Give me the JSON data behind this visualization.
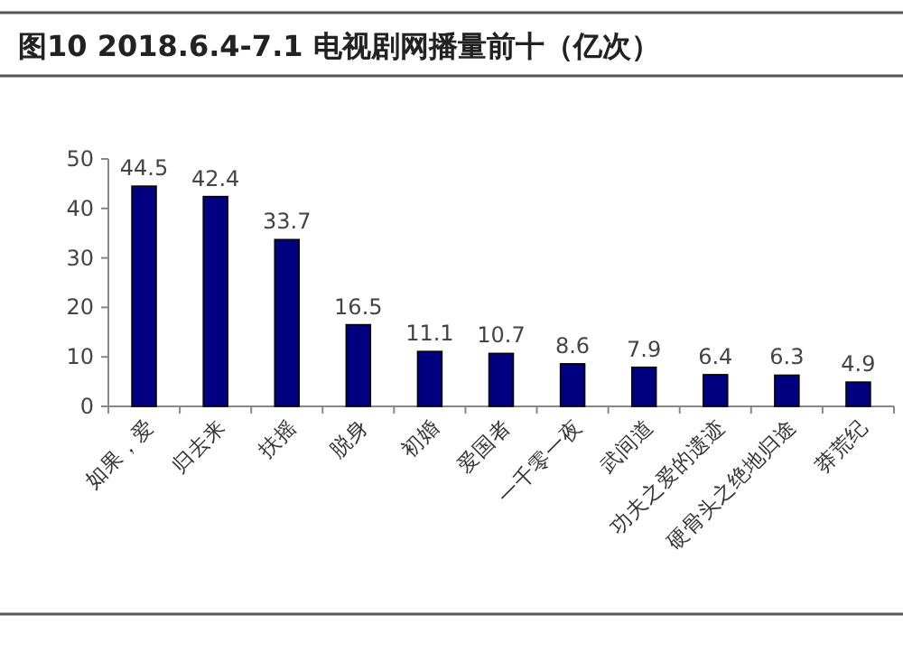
{
  "chart_data": {
    "type": "bar",
    "title": "图10  2018.6.4-7.1 电视剧网播量前十（亿次）",
    "categories": [
      "如果，爱",
      "归去来",
      "扶摇",
      "脱身",
      "初婚",
      "爱国者",
      "一千零一夜",
      "武间道",
      "功夫之爱的遗迹",
      "硬骨头之绝地归途",
      "莽荒纪"
    ],
    "values": [
      44.5,
      42.4,
      33.7,
      16.5,
      11.1,
      10.7,
      8.6,
      7.9,
      6.4,
      6.3,
      4.9
    ],
    "color": "#000080",
    "ylim": [
      0,
      50
    ],
    "yticks": [
      0,
      10,
      20,
      30,
      40,
      50
    ],
    "data_labels": true
  }
}
